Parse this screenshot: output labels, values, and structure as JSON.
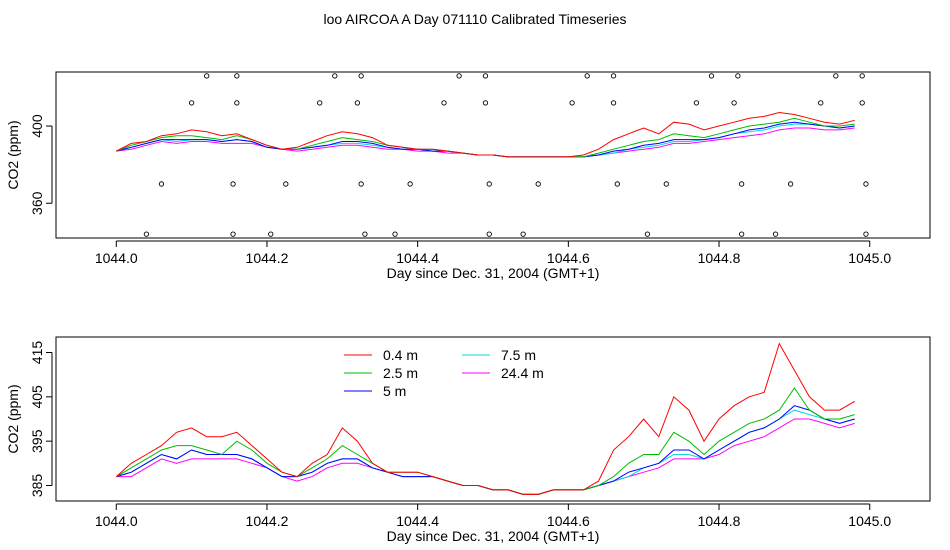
{
  "title": "loo AIRCOA A  Day 071110  Calibrated Timeseries",
  "colors": {
    "0.4 m": "#ff0000",
    "2.5 m": "#00bb00",
    "5 m": "#0000ff",
    "7.5 m": "#00dddd",
    "24.4 m": "#ff00ff"
  },
  "chart_data": [
    {
      "type": "line",
      "xlabel": "Day since Dec. 31, 2004 (GMT+1)",
      "ylabel": "CO2 (ppm)",
      "xlim": [
        1043.92,
        1045.08
      ],
      "ylim": [
        342,
        428
      ],
      "x_ticks": [
        1044.0,
        1044.2,
        1044.4,
        1044.6,
        1044.8,
        1045.0
      ],
      "x_tick_labels": [
        "1044.0",
        "1044.2",
        "1044.4",
        "1044.6",
        "1044.8",
        "1045.0"
      ],
      "y_ticks": [
        360,
        400
      ],
      "y_tick_labels": [
        "360",
        "400"
      ],
      "legend": null,
      "markers": {
        "x": [
          1044.04,
          1044.06,
          1044.1,
          1044.12,
          1044.155,
          1044.155,
          1044.16,
          1044.16,
          1044.205,
          1044.225,
          1044.27,
          1044.29,
          1044.32,
          1044.325,
          1044.325,
          1044.33,
          1044.37,
          1044.39,
          1044.435,
          1044.455,
          1044.49,
          1044.49,
          1044.495,
          1044.495,
          1044.54,
          1044.56,
          1044.605,
          1044.625,
          1044.66,
          1044.66,
          1044.665,
          1044.705,
          1044.73,
          1044.77,
          1044.79,
          1044.82,
          1044.825,
          1044.83,
          1044.83,
          1044.875,
          1044.895,
          1044.935,
          1044.955,
          1044.99,
          1044.99,
          1044.995,
          1044.995
        ],
        "y": [
          344,
          370,
          412,
          426,
          344,
          370,
          412,
          426,
          344,
          370,
          412,
          426,
          412,
          426,
          370,
          344,
          344,
          370,
          412,
          426,
          412,
          426,
          370,
          344,
          344,
          370,
          412,
          426,
          412,
          426,
          370,
          344,
          370,
          412,
          426,
          412,
          426,
          370,
          344,
          344,
          370,
          412,
          426,
          412,
          426,
          370,
          344
        ]
      },
      "x": [
        1044.0,
        1044.02,
        1044.04,
        1044.06,
        1044.08,
        1044.1,
        1044.12,
        1044.14,
        1044.16,
        1044.18,
        1044.2,
        1044.22,
        1044.24,
        1044.26,
        1044.28,
        1044.3,
        1044.32,
        1044.34,
        1044.36,
        1044.38,
        1044.4,
        1044.42,
        1044.44,
        1044.46,
        1044.48,
        1044.5,
        1044.52,
        1044.54,
        1044.56,
        1044.58,
        1044.6,
        1044.62,
        1044.64,
        1044.66,
        1044.68,
        1044.7,
        1044.72,
        1044.74,
        1044.76,
        1044.78,
        1044.8,
        1044.82,
        1044.84,
        1044.86,
        1044.88,
        1044.9,
        1044.92,
        1044.94,
        1044.96,
        1044.98
      ],
      "series": [
        {
          "name": "0.4 m",
          "color": "#ff0000",
          "values": [
            387,
            391,
            392,
            395,
            396,
            398,
            397,
            395,
            396,
            393,
            390,
            388,
            389,
            392,
            395,
            397,
            396,
            394,
            390,
            389,
            388,
            388,
            387,
            386,
            385,
            385,
            384,
            384,
            384,
            384,
            384,
            385,
            388,
            393,
            396,
            399,
            396,
            402,
            401,
            398,
            400,
            402,
            404,
            405,
            407,
            406,
            404,
            402,
            401,
            403
          ]
        },
        {
          "name": "2.5 m",
          "color": "#00bb00",
          "values": [
            387,
            390,
            392,
            394,
            395,
            395,
            394,
            393,
            395,
            393,
            390,
            388,
            388,
            390,
            392,
            394,
            393,
            392,
            390,
            389,
            388,
            388,
            387,
            386,
            385,
            385,
            384,
            384,
            384,
            384,
            384,
            384,
            386,
            388,
            390,
            392,
            393,
            396,
            395,
            394,
            396,
            398,
            400,
            401,
            402,
            404,
            402,
            400,
            400,
            401
          ]
        },
        {
          "name": "5 m",
          "color": "#0000ff",
          "values": [
            387,
            389,
            391,
            393,
            393,
            393,
            393,
            392,
            393,
            392,
            389,
            388,
            388,
            389,
            390,
            392,
            392,
            391,
            389,
            388,
            388,
            387,
            387,
            386,
            385,
            385,
            384,
            384,
            384,
            384,
            384,
            384,
            385,
            387,
            388,
            390,
            391,
            393,
            393,
            393,
            394,
            396,
            398,
            399,
            401,
            402,
            401,
            400,
            399,
            400
          ]
        },
        {
          "name": "7.5 m",
          "color": "#00dddd",
          "values": [
            387,
            389,
            391,
            393,
            392,
            393,
            393,
            392,
            393,
            392,
            389,
            388,
            388,
            389,
            390,
            391,
            391,
            390,
            389,
            388,
            388,
            387,
            387,
            386,
            385,
            385,
            384,
            384,
            384,
            384,
            384,
            384,
            385,
            386,
            388,
            389,
            390,
            392,
            392,
            393,
            394,
            396,
            397,
            398,
            400,
            401,
            401,
            400,
            399,
            400
          ]
        },
        {
          "name": "24.4 m",
          "color": "#ff00ff",
          "values": [
            387,
            388,
            390,
            392,
            391,
            392,
            392,
            391,
            391,
            391,
            389,
            388,
            387,
            388,
            389,
            390,
            390,
            389,
            388,
            388,
            387,
            387,
            386,
            386,
            385,
            385,
            384,
            384,
            384,
            384,
            384,
            384,
            385,
            386,
            387,
            388,
            389,
            391,
            391,
            392,
            393,
            394,
            395,
            396,
            398,
            399,
            399,
            398,
            398,
            399
          ]
        }
      ]
    },
    {
      "type": "line",
      "xlabel": "Day since Dec. 31, 2004 (GMT+1)",
      "ylabel": "CO2 (ppm)",
      "xlim": [
        1043.92,
        1045.08
      ],
      "ylim": [
        381.5,
        418.5
      ],
      "x_ticks": [
        1044.0,
        1044.2,
        1044.4,
        1044.6,
        1044.8,
        1045.0
      ],
      "x_tick_labels": [
        "1044.0",
        "1044.2",
        "1044.4",
        "1044.6",
        "1044.8",
        "1045.0"
      ],
      "y_ticks": [
        385,
        395,
        405,
        415
      ],
      "y_tick_labels": [
        "385",
        "395",
        "405",
        "415"
      ],
      "legend": "top-center",
      "x": [
        1044.0,
        1044.02,
        1044.04,
        1044.06,
        1044.08,
        1044.1,
        1044.12,
        1044.14,
        1044.16,
        1044.18,
        1044.2,
        1044.22,
        1044.24,
        1044.26,
        1044.28,
        1044.3,
        1044.32,
        1044.34,
        1044.36,
        1044.38,
        1044.4,
        1044.42,
        1044.44,
        1044.46,
        1044.48,
        1044.5,
        1044.52,
        1044.54,
        1044.56,
        1044.58,
        1044.6,
        1044.62,
        1044.64,
        1044.66,
        1044.68,
        1044.7,
        1044.72,
        1044.74,
        1044.76,
        1044.78,
        1044.8,
        1044.82,
        1044.84,
        1044.86,
        1044.88,
        1044.9,
        1044.92,
        1044.94,
        1044.96,
        1044.98
      ],
      "series": [
        {
          "name": "0.4 m",
          "color": "#ff0000",
          "values": [
            387,
            390,
            392,
            394,
            397,
            398,
            396,
            396,
            397,
            394,
            391,
            388,
            387,
            390,
            392,
            398,
            395,
            390,
            388,
            388,
            388,
            387,
            386,
            385,
            385,
            384,
            384,
            383,
            383,
            384,
            384,
            384,
            386,
            393,
            396,
            400,
            396,
            405,
            402,
            395,
            400,
            403,
            405,
            406,
            417,
            411,
            405,
            402,
            402,
            404
          ]
        },
        {
          "name": "2.5 m",
          "color": "#00bb00",
          "values": [
            387,
            389,
            391,
            393,
            394,
            394,
            393,
            392,
            395,
            393,
            390,
            388,
            387,
            389,
            391,
            394,
            392,
            390,
            388,
            388,
            388,
            387,
            386,
            385,
            385,
            384,
            384,
            383,
            383,
            384,
            384,
            384,
            385,
            387,
            390,
            392,
            392,
            397,
            395,
            392,
            395,
            397,
            399,
            400,
            402,
            407,
            402,
            400,
            400,
            401
          ]
        },
        {
          "name": "5 m",
          "color": "#0000ff",
          "values": [
            387,
            388,
            390,
            392,
            391,
            393,
            392,
            392,
            392,
            391,
            389,
            387,
            387,
            388,
            390,
            391,
            391,
            389,
            388,
            387,
            387,
            387,
            386,
            385,
            385,
            384,
            384,
            383,
            383,
            384,
            384,
            384,
            385,
            386,
            388,
            389,
            390,
            393,
            393,
            391,
            393,
            395,
            397,
            398,
            400,
            403,
            402,
            400,
            399,
            400
          ]
        },
        {
          "name": "7.5 m",
          "color": "#00dddd",
          "values": [
            387,
            388,
            390,
            392,
            391,
            393,
            392,
            392,
            392,
            391,
            389,
            387,
            387,
            388,
            390,
            391,
            391,
            389,
            388,
            387,
            387,
            387,
            386,
            385,
            385,
            384,
            384,
            383,
            383,
            384,
            384,
            384,
            385,
            386,
            387,
            389,
            390,
            392,
            392,
            391,
            393,
            395,
            397,
            398,
            400,
            402,
            401,
            400,
            399,
            400
          ]
        },
        {
          "name": "24.4 m",
          "color": "#ff00ff",
          "values": [
            387,
            387,
            389,
            391,
            390,
            391,
            391,
            391,
            391,
            390,
            389,
            387,
            386,
            387,
            389,
            390,
            390,
            389,
            388,
            387,
            387,
            387,
            386,
            385,
            385,
            384,
            384,
            383,
            383,
            384,
            384,
            384,
            385,
            386,
            387,
            388,
            389,
            391,
            391,
            391,
            392,
            394,
            395,
            396,
            398,
            400,
            400,
            399,
            398,
            399
          ]
        }
      ]
    }
  ]
}
